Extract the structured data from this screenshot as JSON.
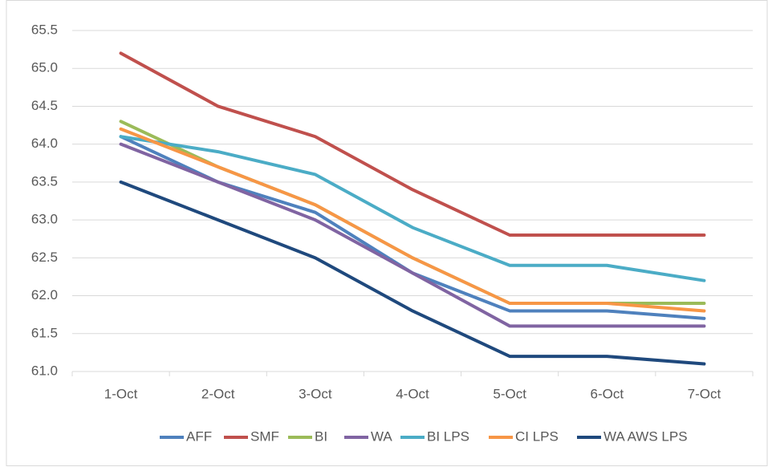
{
  "chart_data": {
    "type": "line",
    "categories": [
      "1-Oct",
      "2-Oct",
      "3-Oct",
      "4-Oct",
      "5-Oct",
      "6-Oct",
      "7-Oct"
    ],
    "series": [
      {
        "name": "AFF",
        "color": "#4f81bd",
        "values": [
          64.1,
          63.5,
          63.1,
          62.3,
          61.8,
          61.8,
          61.7
        ]
      },
      {
        "name": "SMF",
        "color": "#c0504d",
        "values": [
          65.2,
          64.5,
          64.1,
          63.4,
          62.8,
          62.8,
          62.8
        ]
      },
      {
        "name": "BI",
        "color": "#9bbb59",
        "values": [
          64.3,
          63.7,
          63.2,
          62.5,
          61.9,
          61.9,
          61.9
        ]
      },
      {
        "name": "WA",
        "color": "#8064a2",
        "values": [
          64.0,
          63.5,
          63.0,
          62.3,
          61.6,
          61.6,
          61.6
        ]
      },
      {
        "name": "BI LPS",
        "color": "#4bacc6",
        "values": [
          64.1,
          63.9,
          63.6,
          62.9,
          62.4,
          62.4,
          62.2
        ]
      },
      {
        "name": "CI LPS",
        "color": "#f79646",
        "values": [
          64.2,
          63.7,
          63.2,
          62.5,
          61.9,
          61.9,
          61.8
        ]
      },
      {
        "name": "WA AWS LPS",
        "color": "#1f497d",
        "values": [
          63.5,
          63.0,
          62.5,
          61.8,
          61.2,
          61.2,
          61.1
        ]
      }
    ],
    "ylim": [
      61,
      65.5
    ],
    "yticks": [
      {
        "value": 61,
        "label": "61.0"
      },
      61.5,
      {
        "value": 62,
        "label": "62.0"
      },
      62.5,
      {
        "value": 63,
        "label": "63.0"
      },
      63.5,
      {
        "value": 64,
        "label": "64.0"
      },
      64.5,
      {
        "value": 65,
        "label": "65.0"
      },
      65.5
    ],
    "grid": true,
    "legend": "bottom"
  }
}
